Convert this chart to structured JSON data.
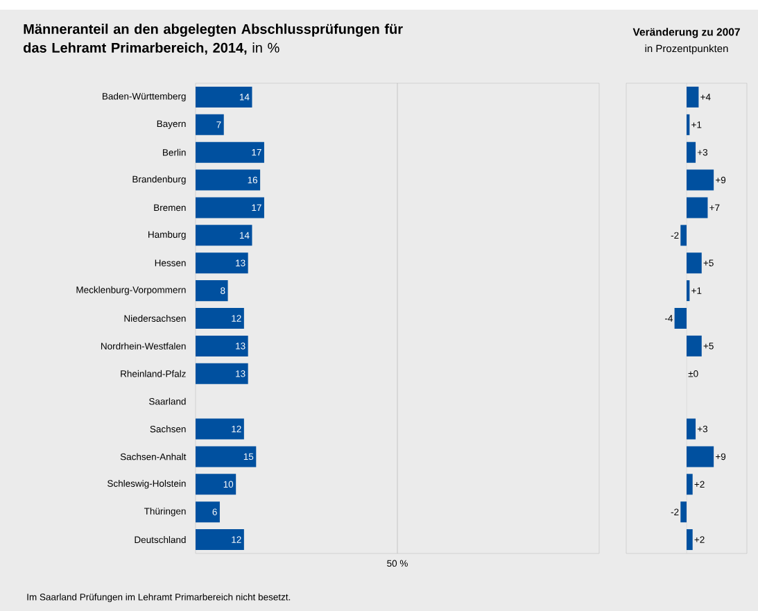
{
  "chart_data": [
    {
      "type": "bar",
      "orientation": "horizontal",
      "title": "**Männeranteil an den abgelegten Abschlussprüfungen für das Lehramt Primarbereich, 2014,** in %",
      "categories": [
        "Baden-Württemberg",
        "Bayern",
        "Berlin",
        "Brandenburg",
        "Bremen",
        "Hamburg",
        "Hessen",
        "Mecklenburg-Vorpommern",
        "Niedersachsen",
        "Nordrhein-Westfalen",
        "Rheinland-Pfalz",
        "Saarland",
        "Sachsen",
        "Sachsen-Anhalt",
        "Schleswig-Holstein",
        "Thüringen",
        "Deutschland"
      ],
      "values": [
        14,
        7,
        17,
        16,
        17,
        14,
        13,
        8,
        12,
        13,
        13,
        null,
        12,
        15,
        10,
        6,
        12
      ],
      "color": "#00509f",
      "data_labels": true,
      "xlim": [
        0,
        100
      ],
      "xticks": [
        {
          "value": 50,
          "label": "50 %"
        }
      ],
      "grid": "x",
      "annotations": [
        "Im Saarland Prüfungen im Lehramt Primarbereich nicht besetzt."
      ]
    },
    {
      "type": "bar",
      "orientation": "horizontal",
      "title": "Veränderung zu 2007",
      "subtitle": "in Prozentpunkten",
      "categories": [
        null,
        null,
        null,
        null,
        null,
        null,
        null,
        null,
        null,
        null,
        null,
        null,
        null,
        null,
        null,
        null,
        null
      ],
      "values": [
        4,
        1,
        3,
        9,
        7,
        -2,
        5,
        1,
        -4,
        5,
        0,
        null,
        3,
        9,
        2,
        -2,
        2
      ],
      "value_labels": [
        "+4",
        "+1",
        "+3",
        "+9",
        "+7",
        "-2",
        "+5",
        "+1",
        "-4",
        "+5",
        "±0",
        null,
        "+3",
        "+9",
        "+2",
        "-2",
        "+2"
      ],
      "color": "#00509f",
      "xlim": [
        -20,
        20
      ],
      "ref_lines": [
        {
          "axis": "x",
          "value": 0
        }
      ]
    }
  ]
}
